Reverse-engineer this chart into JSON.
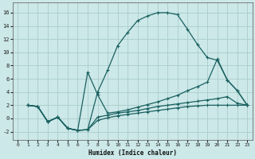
{
  "bg_color": "#cce8e8",
  "grid_color": "#aacccc",
  "line_color": "#1a6060",
  "xlabel": "Humidex (Indice chaleur)",
  "xlim": [
    -0.5,
    23.5
  ],
  "ylim": [
    -3.2,
    17.5
  ],
  "xticks": [
    0,
    1,
    2,
    3,
    4,
    5,
    6,
    7,
    8,
    9,
    10,
    11,
    12,
    13,
    14,
    15,
    16,
    17,
    18,
    19,
    20,
    21,
    22,
    23
  ],
  "yticks": [
    -2,
    0,
    2,
    4,
    6,
    8,
    10,
    12,
    14,
    16
  ],
  "curve_main_x": [
    1,
    2,
    3,
    4,
    5,
    6,
    7,
    8,
    9,
    10,
    11,
    12,
    13,
    14,
    15,
    16,
    17,
    18,
    19,
    20,
    21,
    22,
    23
  ],
  "curve_main_y": [
    2,
    1.8,
    -0.5,
    0.2,
    -1.5,
    -1.8,
    -1.7,
    4.0,
    7.3,
    11.0,
    13.0,
    14.8,
    15.5,
    16.0,
    16.0,
    15.7,
    13.5,
    11.2,
    9.2,
    8.8,
    5.8,
    4.2,
    2.0
  ],
  "curve_mid_x": [
    1,
    2,
    3,
    4,
    5,
    6,
    7,
    8,
    9,
    10,
    11,
    12,
    13,
    14,
    15,
    16,
    17,
    18,
    19,
    20,
    21,
    22,
    23
  ],
  "curve_mid_y": [
    2,
    1.8,
    -0.5,
    0.2,
    -1.5,
    -1.8,
    7.0,
    3.6,
    0.8,
    1.0,
    1.3,
    1.7,
    2.1,
    2.5,
    3.0,
    3.5,
    4.2,
    4.8,
    5.5,
    9.0,
    5.8,
    4.2,
    2.0
  ],
  "curve_low_x": [
    1,
    2,
    3,
    4,
    5,
    6,
    7,
    8,
    9,
    10,
    11,
    12,
    13,
    14,
    15,
    16,
    17,
    18,
    19,
    20,
    21,
    22,
    23
  ],
  "curve_low_y": [
    2,
    1.8,
    -0.5,
    0.2,
    -1.5,
    -1.8,
    -1.7,
    0.2,
    0.5,
    0.8,
    1.0,
    1.2,
    1.5,
    1.8,
    2.0,
    2.2,
    2.4,
    2.6,
    2.8,
    3.0,
    3.3,
    2.3,
    2.0
  ],
  "curve_flat_x": [
    1,
    2,
    3,
    4,
    5,
    6,
    7,
    8,
    9,
    10,
    11,
    12,
    13,
    14,
    15,
    16,
    17,
    18,
    19,
    20,
    21,
    22,
    23
  ],
  "curve_flat_y": [
    2,
    1.8,
    -0.5,
    0.2,
    -1.5,
    -1.8,
    -1.7,
    -0.3,
    0.1,
    0.4,
    0.6,
    0.8,
    1.0,
    1.2,
    1.4,
    1.6,
    1.8,
    1.9,
    2.0,
    2.0,
    2.0,
    2.0,
    2.0
  ]
}
